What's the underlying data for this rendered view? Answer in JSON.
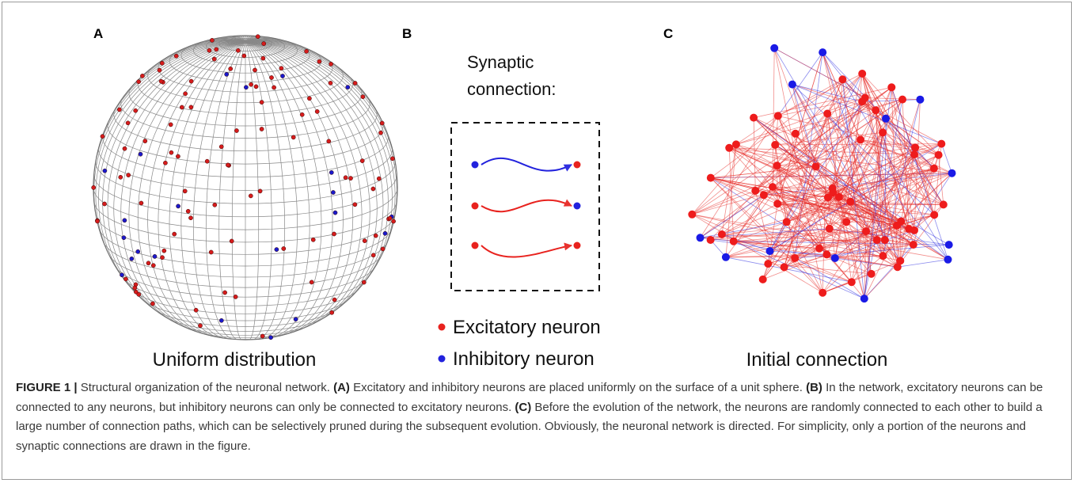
{
  "panels": [
    {
      "label": "A",
      "caption": "Uniform distribution"
    },
    {
      "label": "B",
      "heading": [
        "Synaptic",
        "connection:"
      ],
      "legend": [
        "Excitatory neuron",
        "Inhibitory neuron"
      ]
    },
    {
      "label": "C",
      "caption": "Initial connection"
    }
  ],
  "caption": {
    "label": "FIGURE 1 |",
    "intro": "Structural organization of the neuronal network.",
    "parts": [
      {
        "tag": "(A)",
        "text": "Excitatory and inhibitory neurons are placed uniformly on the surface of a unit sphere."
      },
      {
        "tag": "(B)",
        "text": "In the network, excitatory neurons can be connected to any neurons, but inhibitory neurons can only be connected to excitatory neurons."
      },
      {
        "tag": "(C)",
        "text": "Before the evolution of the network, the neurons are randomly connected to each other to build a large number of connection paths, which can be selectively pruned during the subsequent evolution. Obviously, the neuronal network is directed. For simplicity, only a portion of the neurons and synaptic connections are drawn in the figure."
      }
    ]
  }
}
